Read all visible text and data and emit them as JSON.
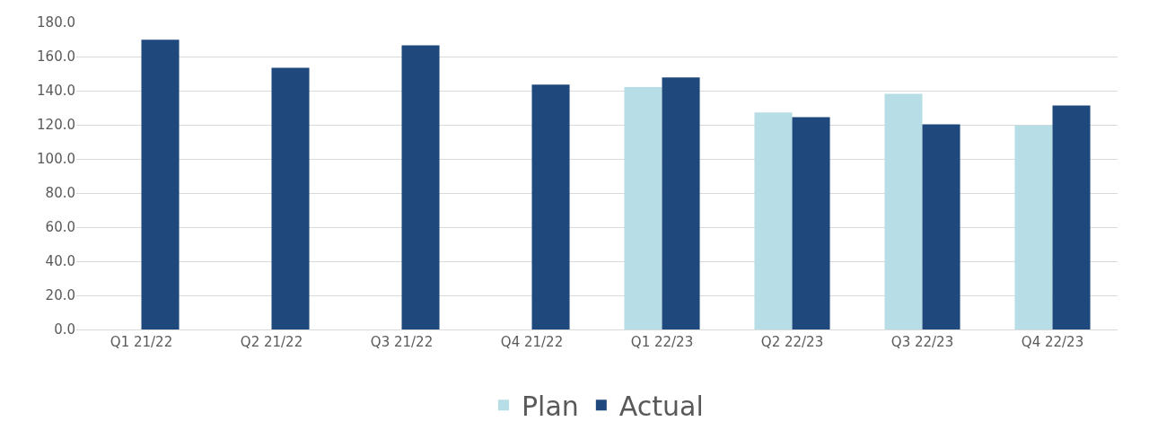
{
  "chart_data": {
    "type": "bar",
    "categories": [
      "Q1 21/22",
      "Q2 21/22",
      "Q3 21/22",
      "Q4 21/22",
      "Q1 22/23",
      "Q2 22/23",
      "Q3 22/23",
      "Q4 22/23"
    ],
    "series": [
      {
        "name": "Plan",
        "color": "#b7dde6",
        "values": [
          null,
          null,
          null,
          null,
          142.1,
          127.2,
          138.1,
          119.8
        ]
      },
      {
        "name": "Actual",
        "color": "#1f497d",
        "values": [
          169.9,
          153.4,
          166.6,
          143.5,
          147.8,
          124.5,
          120.2,
          131.3
        ]
      }
    ],
    "ylim": [
      0,
      180
    ],
    "yticks": [
      {
        "value": 0,
        "label": "0.0"
      },
      {
        "value": 20,
        "label": "20.0"
      },
      {
        "value": 40,
        "label": "40.0"
      },
      {
        "value": 60,
        "label": "60.0"
      },
      {
        "value": 80,
        "label": "80.0"
      },
      {
        "value": 100,
        "label": "100.0"
      },
      {
        "value": 120,
        "label": "120.0"
      },
      {
        "value": 140,
        "label": "140.0"
      },
      {
        "value": 160,
        "label": "160.0"
      },
      {
        "value": 180,
        "label": "180.0"
      }
    ],
    "grid": "y",
    "legend": "bottom"
  }
}
